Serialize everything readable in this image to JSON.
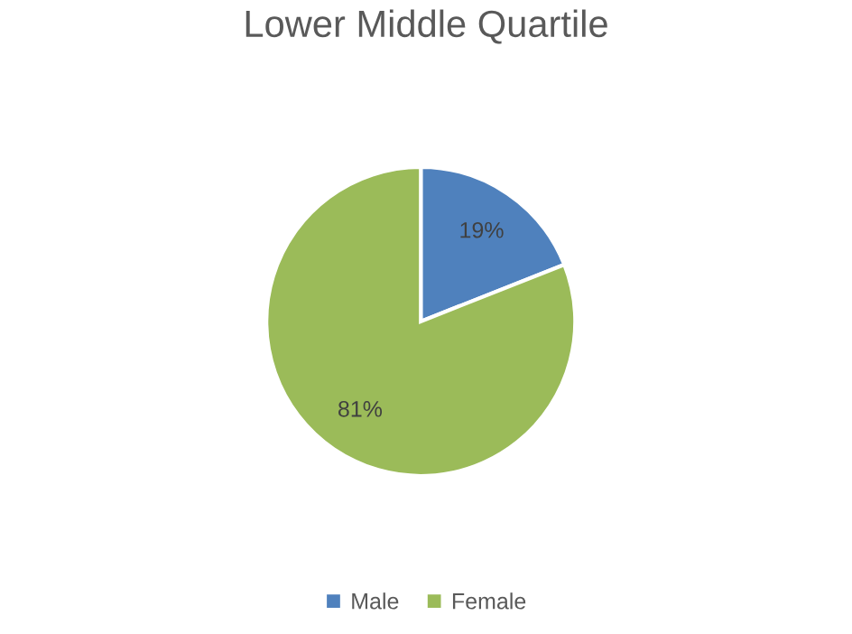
{
  "chart_data": {
    "type": "pie",
    "title": "Lower Middle Quartile",
    "categories": [
      "Male",
      "Female"
    ],
    "values": [
      19,
      81
    ],
    "colors": [
      "#4f81bd",
      "#9bbb59"
    ],
    "value_labels": [
      "19%",
      "81%"
    ],
    "legend": "bottom"
  }
}
